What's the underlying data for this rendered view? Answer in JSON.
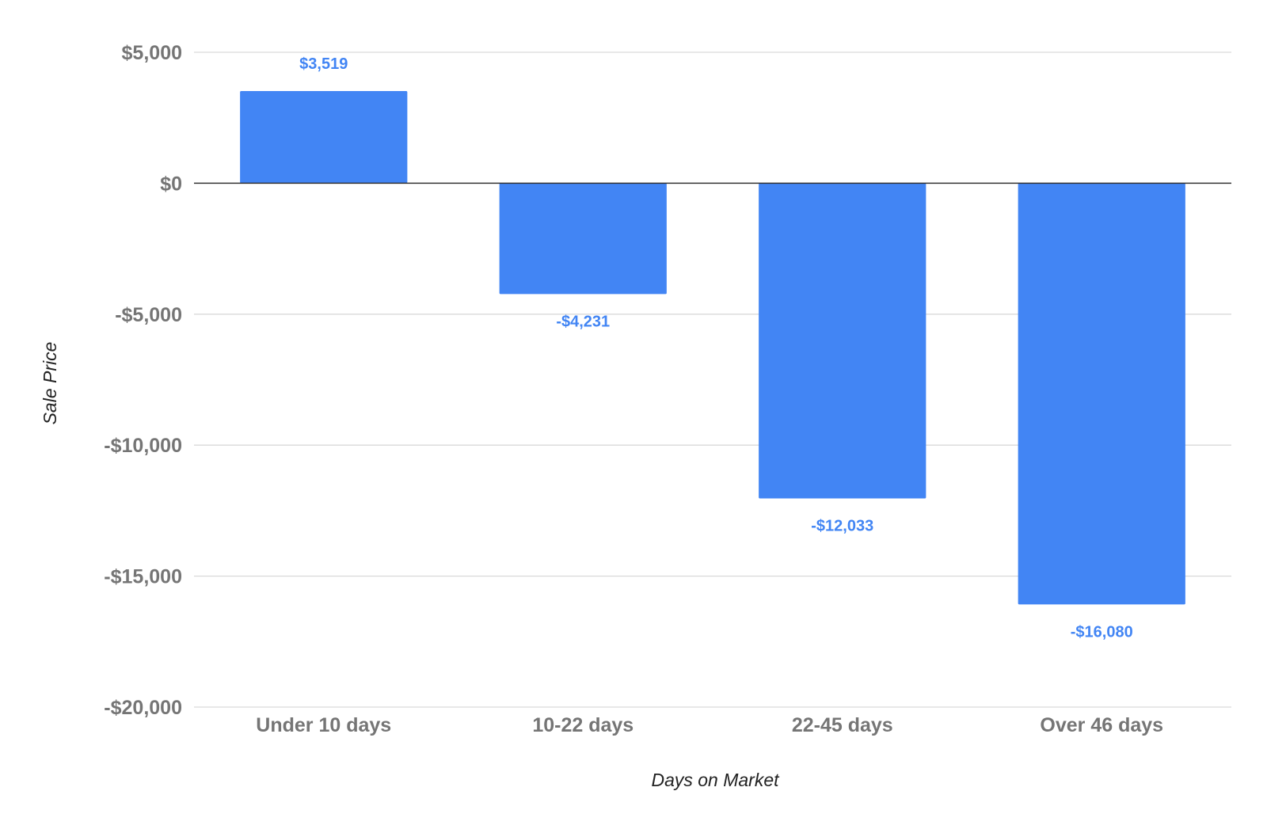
{
  "chart_data": {
    "type": "bar",
    "title": "",
    "categories": [
      "Under 10 days",
      "10-22 days",
      "22-45 days",
      "Over 46 days"
    ],
    "values": [
      3519,
      -4231,
      -12033,
      -16080
    ],
    "data_labels": [
      "$3,519",
      "-$4,231",
      "-$12,033",
      "-$16,080"
    ],
    "xlabel": "Days on Market",
    "ylabel": "Sale Price",
    "ylim": [
      -20000,
      5000
    ],
    "yticks": [
      5000,
      0,
      -5000,
      -10000,
      -15000,
      -20000
    ],
    "ytick_labels": [
      "$5,000",
      "$0",
      "-$5,000",
      "-$10,000",
      "-$15,000",
      "-$20,000"
    ],
    "grid": true,
    "legend": "none",
    "colors": {
      "bar": "#4285f4",
      "data_label": "#4285f4",
      "grid": "#d9d9d9",
      "zero_line": "#333333",
      "tick_text": "#757575"
    }
  }
}
